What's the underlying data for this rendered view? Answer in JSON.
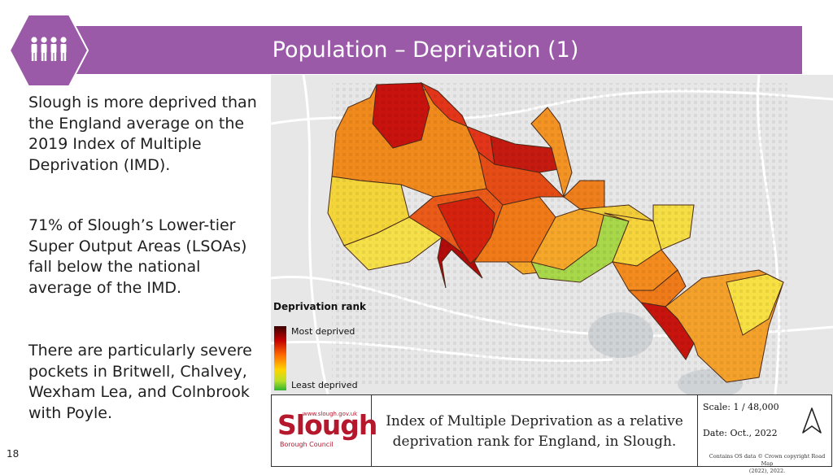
{
  "header": {
    "title": "Population – Deprivation (1)",
    "icon": "people-group-icon"
  },
  "body": {
    "paragraph1": [
      "Slough is more deprived than",
      "the England average on the",
      "2019 Index of Multiple",
      "Deprivation (IMD)."
    ],
    "paragraph2": [
      "71% of Slough’s Lower-tier",
      "Super Output Areas (LSOAs)",
      "fall below the national",
      "average of the IMD."
    ],
    "paragraph3": [
      "There are particularly severe",
      "pockets in Britwell, Chalvey,",
      "Wexham Lea, and Colnbrook",
      "with Poyle."
    ]
  },
  "page_number": "18",
  "legend": {
    "title": "Deprivation rank",
    "top_label": "Most deprived",
    "bottom_label": "Least deprived"
  },
  "footer": {
    "logo_text": "Slough",
    "logo_url": "www.slough.gov.uk",
    "logo_council": "Borough Council",
    "caption_line1": "Index of Multiple Deprivation as a relative",
    "caption_line2": "deprivation rank for England, in Slough.",
    "scale": "Scale: 1 / 48,000",
    "date": "Date: Oct., 2022",
    "credit_line1": "Contains OS data © Crown copyright Road Map",
    "credit_line2": "(2022), 2022."
  },
  "colors": {
    "banner": "#9b5aa8",
    "brand_red": "#b5172c"
  }
}
